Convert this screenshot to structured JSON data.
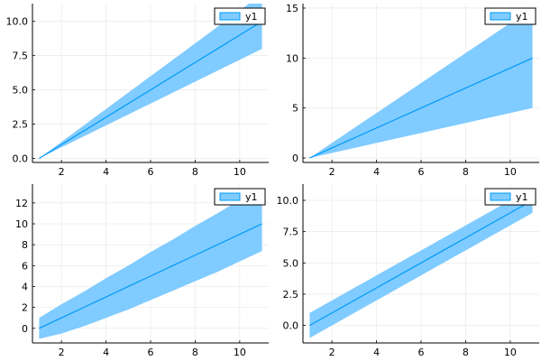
{
  "colors": {
    "band": "#80cbff",
    "line": "#009af9",
    "grid": "#e6e6e6",
    "axis": "#000000",
    "background": "#ffffff"
  },
  "chart_data": [
    {
      "type": "line",
      "grid": true,
      "legend": {
        "position": "top-right",
        "entries": [
          "y1"
        ]
      },
      "xlim": [
        0.7,
        11.3
      ],
      "ylim": [
        -0.3,
        11.3
      ],
      "xticks": [
        2,
        4,
        6,
        8,
        10
      ],
      "xtick_labels": [
        "2",
        "4",
        "6",
        "8",
        "10"
      ],
      "yticks": [
        0,
        2.5,
        5,
        7.5,
        10
      ],
      "ytick_labels": [
        "0.0",
        "2.5",
        "5.0",
        "7.5",
        "10.0"
      ],
      "series": [
        {
          "name": "y1",
          "x": [
            1,
            2,
            3,
            4,
            5,
            6,
            7,
            8,
            9,
            10,
            11
          ],
          "y": [
            0,
            1,
            2,
            3,
            4,
            5,
            6,
            7,
            8,
            9,
            10
          ],
          "lower": [
            0,
            0.8,
            1.6,
            2.4,
            3.2,
            4.0,
            4.8,
            5.6,
            6.4,
            7.2,
            8.0
          ],
          "upper": [
            0,
            1.2,
            2.4,
            3.6,
            4.8,
            6.0,
            7.2,
            8.4,
            9.6,
            10.8,
            12.0
          ]
        }
      ]
    },
    {
      "type": "line",
      "grid": true,
      "legend": {
        "position": "top-right",
        "entries": [
          "y1"
        ]
      },
      "xlim": [
        0.7,
        11.3
      ],
      "ylim": [
        -0.45,
        15.45
      ],
      "xticks": [
        2,
        4,
        6,
        8,
        10
      ],
      "xtick_labels": [
        "2",
        "4",
        "6",
        "8",
        "10"
      ],
      "yticks": [
        0,
        5,
        10,
        15
      ],
      "ytick_labels": [
        "0",
        "5",
        "10",
        "15"
      ],
      "series": [
        {
          "name": "y1",
          "x": [
            1,
            2,
            3,
            4,
            5,
            6,
            7,
            8,
            9,
            10,
            11
          ],
          "y": [
            0,
            1,
            2,
            3,
            4,
            5,
            6,
            7,
            8,
            9,
            10
          ],
          "lower": [
            0,
            0.5,
            1.0,
            1.5,
            2.0,
            2.5,
            3.0,
            3.5,
            4.0,
            4.5,
            5.0
          ],
          "upper": [
            0,
            1.5,
            3.0,
            4.5,
            6.0,
            7.5,
            9.0,
            10.5,
            12.0,
            13.5,
            15.0
          ]
        }
      ]
    },
    {
      "type": "line",
      "grid": true,
      "legend": {
        "position": "top-right",
        "entries": [
          "y1"
        ]
      },
      "xlim": [
        0.7,
        11.3
      ],
      "ylim": [
        -1.4,
        13.8
      ],
      "xticks": [
        2,
        4,
        6,
        8,
        10
      ],
      "xtick_labels": [
        "2",
        "4",
        "6",
        "8",
        "10"
      ],
      "yticks": [
        0,
        2,
        4,
        6,
        8,
        10,
        12
      ],
      "ytick_labels": [
        "0",
        "2",
        "4",
        "6",
        "8",
        "10",
        "12"
      ],
      "series": [
        {
          "name": "y1",
          "x": [
            1,
            2,
            3,
            4,
            5,
            6,
            7,
            8,
            9,
            10,
            11
          ],
          "y": [
            0,
            1,
            2,
            3,
            4,
            5,
            6,
            7,
            8,
            9,
            10
          ],
          "lower": [
            -1,
            -0.5,
            0.2,
            1.0,
            1.8,
            2.7,
            3.6,
            4.5,
            5.4,
            6.4,
            7.4
          ],
          "upper": [
            1,
            2.3,
            3.5,
            4.8,
            6.0,
            7.3,
            8.5,
            9.8,
            11.0,
            12.3,
            13.4
          ]
        }
      ]
    },
    {
      "type": "line",
      "grid": true,
      "legend": {
        "position": "top-right",
        "entries": [
          "y1"
        ]
      },
      "xlim": [
        0.7,
        11.3
      ],
      "ylim": [
        -1.4,
        11.3
      ],
      "xticks": [
        2,
        4,
        6,
        8,
        10
      ],
      "xtick_labels": [
        "2",
        "4",
        "6",
        "8",
        "10"
      ],
      "yticks": [
        0,
        2.5,
        5,
        7.5,
        10
      ],
      "ytick_labels": [
        "0.0",
        "2.5",
        "5.0",
        "7.5",
        "10.0"
      ],
      "series": [
        {
          "name": "y1",
          "x": [
            1,
            2,
            3,
            4,
            5,
            6,
            7,
            8,
            9,
            10,
            11
          ],
          "y": [
            0,
            1,
            2,
            3,
            4,
            5,
            6,
            7,
            8,
            9,
            10
          ],
          "lower": [
            -1,
            0,
            1,
            2,
            3,
            4,
            5,
            6,
            7,
            8,
            9
          ],
          "upper": [
            1,
            2,
            3,
            4,
            5,
            6,
            7,
            8,
            9,
            10,
            11
          ]
        }
      ]
    }
  ]
}
